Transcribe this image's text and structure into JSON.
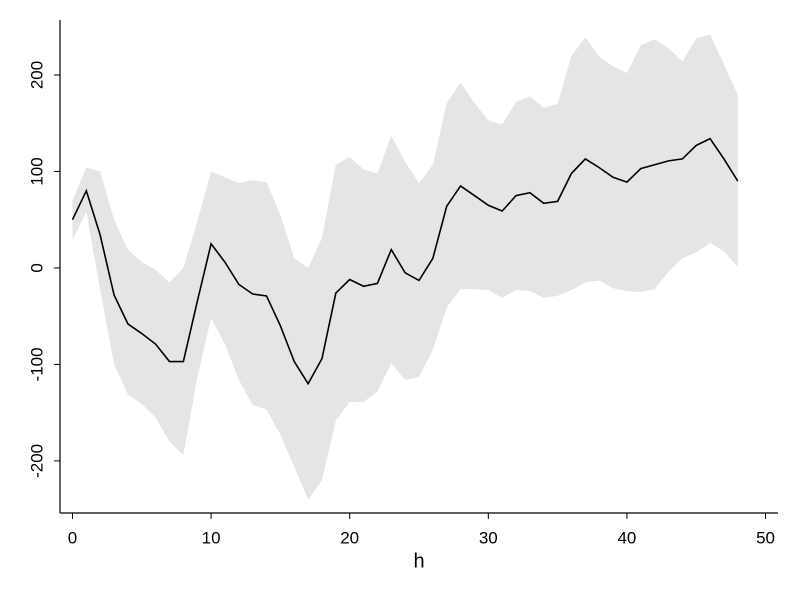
{
  "chart_data": {
    "type": "line",
    "xlabel": "h",
    "x": [
      0,
      1,
      2,
      3,
      4,
      5,
      6,
      7,
      8,
      9,
      10,
      11,
      12,
      13,
      14,
      15,
      16,
      17,
      18,
      19,
      20,
      21,
      22,
      23,
      24,
      25,
      26,
      27,
      28,
      29,
      30,
      31,
      32,
      33,
      34,
      35,
      36,
      37,
      38,
      39,
      40,
      41,
      42,
      43,
      44,
      45,
      46,
      47,
      48
    ],
    "series": [
      {
        "color": "#000000",
        "values": [
          50,
          80,
          34,
          -28,
          -58,
          -68,
          -79,
          -97,
          -97,
          -35,
          25,
          6,
          -17,
          -27,
          -29,
          -60,
          -97,
          -120,
          -94,
          -26,
          -12,
          -19,
          -16,
          19,
          -5,
          -13,
          10,
          64,
          85,
          75,
          65,
          59,
          75,
          78,
          67,
          69,
          98,
          113,
          104,
          94,
          89,
          103,
          107,
          111,
          113,
          127,
          134,
          113,
          90
        ]
      }
    ],
    "band": {
      "color": "#e5e5e5",
      "upper": [
        70,
        104,
        100,
        50,
        19,
        6,
        -2,
        -15,
        0,
        48,
        100,
        94,
        88,
        91,
        89,
        55,
        10,
        0,
        31,
        107,
        115,
        102,
        98,
        137,
        110,
        88,
        107,
        171,
        192,
        171,
        153,
        149,
        172,
        178,
        166,
        170,
        220,
        239,
        219,
        209,
        202,
        231,
        237,
        228,
        214,
        238,
        242,
        211,
        179
      ],
      "lower": [
        29,
        58,
        -23,
        -100,
        -131,
        -141,
        -155,
        -180,
        -194,
        -114,
        -52,
        -79,
        -116,
        -142,
        -147,
        -173,
        -206,
        -240,
        -220,
        -158,
        -139,
        -139,
        -128,
        -99,
        -116,
        -113,
        -85,
        -41,
        -22,
        -22,
        -23,
        -31,
        -23,
        -24,
        -31,
        -29,
        -23,
        -15,
        -13,
        -21,
        -24,
        -25,
        -22,
        -4,
        10,
        16,
        26,
        17,
        1
      ]
    },
    "xlim": [
      -0.9,
      50.9
    ],
    "ylim": [
      -254,
      257
    ],
    "xticks": [
      0,
      10,
      20,
      30,
      40,
      50
    ],
    "yticks": [
      -200,
      -100,
      0,
      100,
      200
    ]
  }
}
